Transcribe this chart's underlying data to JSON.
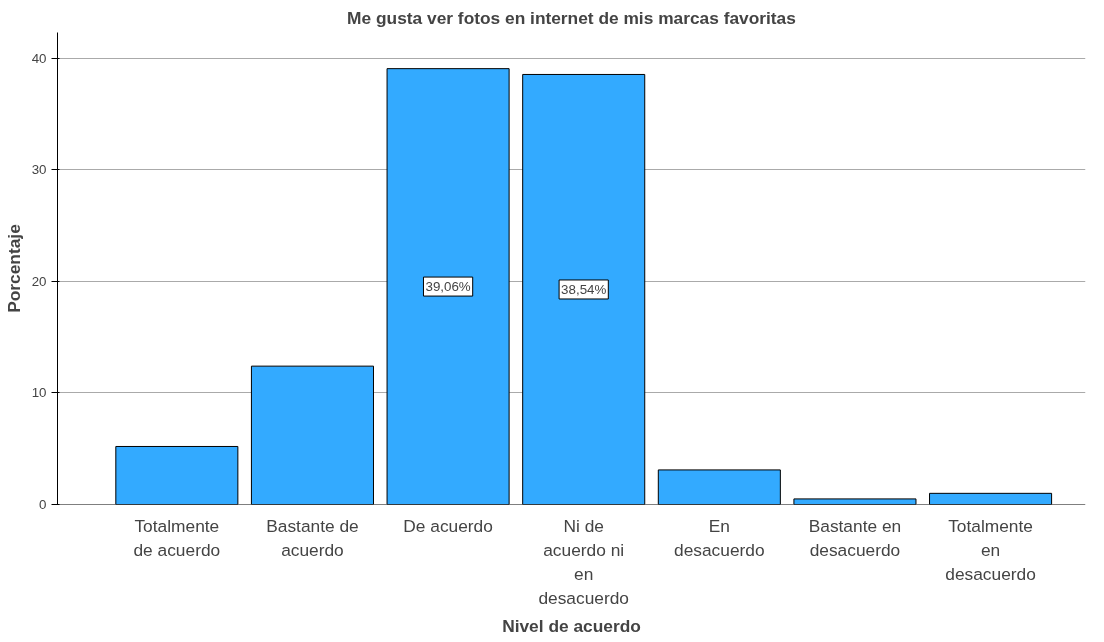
{
  "chart_data": {
    "type": "bar",
    "title": "Me gusta ver fotos en internet de mis marcas favoritas",
    "xlabel": "Nivel de acuerdo",
    "ylabel": "Porcentaje",
    "categories": [
      "Totalmente de acuerdo",
      "Bastante de acuerdo",
      "De acuerdo",
      "Ni de acuerdo ni en desacuerdo",
      "En desacuerdo",
      "Bastante en desacuerdo",
      "Totalmente en desacuerdo"
    ],
    "values": [
      5.2,
      12.4,
      39.06,
      38.54,
      3.1,
      0.5,
      1.0
    ],
    "value_labels": [
      null,
      null,
      "39,06%",
      "38,54%",
      null,
      null,
      null
    ],
    "color": "#33aaff",
    "ylim": [
      0,
      42.3
    ],
    "yticks": [
      0,
      10,
      20,
      30,
      40
    ],
    "grid": "y"
  }
}
